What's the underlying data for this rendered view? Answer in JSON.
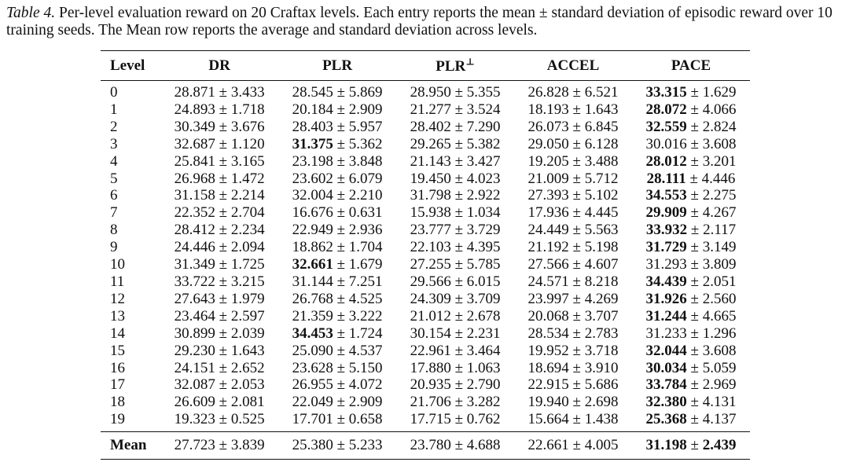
{
  "caption": {
    "label": "Table 4.",
    "text": "Per-level evaluation reward on 20 Craftax levels. Each entry reports the mean ± standard deviation of episodic reward over 10 training seeds. The Mean row reports the average and standard deviation across levels."
  },
  "table": {
    "headers": [
      "Level",
      "DR",
      "PLR",
      "PLR⊥",
      "ACCEL",
      "PACE"
    ],
    "rows": [
      {
        "level": "0",
        "cells": [
          {
            "mean": "28.871",
            "std": "3.433"
          },
          {
            "mean": "28.545",
            "std": "5.869"
          },
          {
            "mean": "28.950",
            "std": "5.355"
          },
          {
            "mean": "26.828",
            "std": "6.521"
          },
          {
            "mean": "33.315",
            "std": "1.629",
            "bold": true
          }
        ]
      },
      {
        "level": "1",
        "cells": [
          {
            "mean": "24.893",
            "std": "1.718"
          },
          {
            "mean": "20.184",
            "std": "2.909"
          },
          {
            "mean": "21.277",
            "std": "3.524"
          },
          {
            "mean": "18.193",
            "std": "1.643"
          },
          {
            "mean": "28.072",
            "std": "4.066",
            "bold": true
          }
        ]
      },
      {
        "level": "2",
        "cells": [
          {
            "mean": "30.349",
            "std": "3.676"
          },
          {
            "mean": "28.403",
            "std": "5.957"
          },
          {
            "mean": "28.402",
            "std": "7.290"
          },
          {
            "mean": "26.073",
            "std": "6.845"
          },
          {
            "mean": "32.559",
            "std": "2.824",
            "bold": true
          }
        ]
      },
      {
        "level": "3",
        "cells": [
          {
            "mean": "32.687",
            "std": "1.120"
          },
          {
            "mean": "31.375",
            "std": "5.362",
            "bold": true
          },
          {
            "mean": "29.265",
            "std": "5.382"
          },
          {
            "mean": "29.050",
            "std": "6.128"
          },
          {
            "mean": "30.016",
            "std": "3.608"
          }
        ]
      },
      {
        "level": "4",
        "cells": [
          {
            "mean": "25.841",
            "std": "3.165"
          },
          {
            "mean": "23.198",
            "std": "3.848"
          },
          {
            "mean": "21.143",
            "std": "3.427"
          },
          {
            "mean": "19.205",
            "std": "3.488"
          },
          {
            "mean": "28.012",
            "std": "3.201",
            "bold": true
          }
        ]
      },
      {
        "level": "5",
        "cells": [
          {
            "mean": "26.968",
            "std": "1.472"
          },
          {
            "mean": "23.602",
            "std": "6.079"
          },
          {
            "mean": "19.450",
            "std": "4.023"
          },
          {
            "mean": "21.009",
            "std": "5.712"
          },
          {
            "mean": "28.111",
            "std": "4.446",
            "bold": true
          }
        ]
      },
      {
        "level": "6",
        "cells": [
          {
            "mean": "31.158",
            "std": "2.214"
          },
          {
            "mean": "32.004",
            "std": "2.210"
          },
          {
            "mean": "31.798",
            "std": "2.922"
          },
          {
            "mean": "27.393",
            "std": "5.102"
          },
          {
            "mean": "34.553",
            "std": "2.275",
            "bold": true
          }
        ]
      },
      {
        "level": "7",
        "cells": [
          {
            "mean": "22.352",
            "std": "2.704"
          },
          {
            "mean": "16.676",
            "std": "0.631"
          },
          {
            "mean": "15.938",
            "std": "1.034"
          },
          {
            "mean": "17.936",
            "std": "4.445"
          },
          {
            "mean": "29.909",
            "std": "4.267",
            "bold": true
          }
        ]
      },
      {
        "level": "8",
        "cells": [
          {
            "mean": "28.412",
            "std": "2.234"
          },
          {
            "mean": "22.949",
            "std": "2.936"
          },
          {
            "mean": "23.777",
            "std": "3.729"
          },
          {
            "mean": "24.449",
            "std": "5.563"
          },
          {
            "mean": "33.932",
            "std": "2.117",
            "bold": true
          }
        ]
      },
      {
        "level": "9",
        "cells": [
          {
            "mean": "24.446",
            "std": "2.094"
          },
          {
            "mean": "18.862",
            "std": "1.704"
          },
          {
            "mean": "22.103",
            "std": "4.395"
          },
          {
            "mean": "21.192",
            "std": "5.198"
          },
          {
            "mean": "31.729",
            "std": "3.149",
            "bold": true
          }
        ]
      },
      {
        "level": "10",
        "cells": [
          {
            "mean": "31.349",
            "std": "1.725"
          },
          {
            "mean": "32.661",
            "std": "1.679",
            "bold": true
          },
          {
            "mean": "27.255",
            "std": "5.785"
          },
          {
            "mean": "27.566",
            "std": "4.607"
          },
          {
            "mean": "31.293",
            "std": "3.809"
          }
        ]
      },
      {
        "level": "11",
        "cells": [
          {
            "mean": "33.722",
            "std": "3.215"
          },
          {
            "mean": "31.144",
            "std": "7.251"
          },
          {
            "mean": "29.566",
            "std": "6.015"
          },
          {
            "mean": "24.571",
            "std": "8.218"
          },
          {
            "mean": "34.439",
            "std": "2.051",
            "bold": true
          }
        ]
      },
      {
        "level": "12",
        "cells": [
          {
            "mean": "27.643",
            "std": "1.979"
          },
          {
            "mean": "26.768",
            "std": "4.525"
          },
          {
            "mean": "24.309",
            "std": "3.709"
          },
          {
            "mean": "23.997",
            "std": "4.269"
          },
          {
            "mean": "31.926",
            "std": "2.560",
            "bold": true
          }
        ]
      },
      {
        "level": "13",
        "cells": [
          {
            "mean": "23.464",
            "std": "2.597"
          },
          {
            "mean": "21.359",
            "std": "3.222"
          },
          {
            "mean": "21.012",
            "std": "2.678"
          },
          {
            "mean": "20.068",
            "std": "3.707"
          },
          {
            "mean": "31.244",
            "std": "4.665",
            "bold": true
          }
        ]
      },
      {
        "level": "14",
        "cells": [
          {
            "mean": "30.899",
            "std": "2.039"
          },
          {
            "mean": "34.453",
            "std": "1.724",
            "bold": true
          },
          {
            "mean": "30.154",
            "std": "2.231"
          },
          {
            "mean": "28.534",
            "std": "2.783"
          },
          {
            "mean": "31.233",
            "std": "1.296"
          }
        ]
      },
      {
        "level": "15",
        "cells": [
          {
            "mean": "29.230",
            "std": "1.643"
          },
          {
            "mean": "25.090",
            "std": "4.537"
          },
          {
            "mean": "22.961",
            "std": "3.464"
          },
          {
            "mean": "19.952",
            "std": "3.718"
          },
          {
            "mean": "32.044",
            "std": "3.608",
            "bold": true
          }
        ]
      },
      {
        "level": "16",
        "cells": [
          {
            "mean": "24.151",
            "std": "2.652"
          },
          {
            "mean": "23.628",
            "std": "5.150"
          },
          {
            "mean": "17.880",
            "std": "1.063"
          },
          {
            "mean": "18.694",
            "std": "3.910"
          },
          {
            "mean": "30.034",
            "std": "5.059",
            "bold": true
          }
        ]
      },
      {
        "level": "17",
        "cells": [
          {
            "mean": "32.087",
            "std": "2.053"
          },
          {
            "mean": "26.955",
            "std": "4.072"
          },
          {
            "mean": "20.935",
            "std": "2.790"
          },
          {
            "mean": "22.915",
            "std": "5.686"
          },
          {
            "mean": "33.784",
            "std": "2.969",
            "bold": true
          }
        ]
      },
      {
        "level": "18",
        "cells": [
          {
            "mean": "26.609",
            "std": "2.081"
          },
          {
            "mean": "22.049",
            "std": "2.909"
          },
          {
            "mean": "21.706",
            "std": "3.282"
          },
          {
            "mean": "19.940",
            "std": "2.698"
          },
          {
            "mean": "32.380",
            "std": "4.131",
            "bold": true
          }
        ]
      },
      {
        "level": "19",
        "cells": [
          {
            "mean": "19.323",
            "std": "0.525"
          },
          {
            "mean": "17.701",
            "std": "0.658"
          },
          {
            "mean": "17.715",
            "std": "0.762"
          },
          {
            "mean": "15.664",
            "std": "1.438"
          },
          {
            "mean": "25.368",
            "std": "4.137",
            "bold": true
          }
        ]
      }
    ],
    "mean_row": {
      "label": "Mean",
      "cells": [
        {
          "mean": "27.723",
          "std": "3.839"
        },
        {
          "mean": "25.380",
          "std": "5.233"
        },
        {
          "mean": "23.780",
          "std": "4.688"
        },
        {
          "mean": "22.661",
          "std": "4.005"
        },
        {
          "mean": "31.198",
          "std": "2.439",
          "bold": true,
          "bold_std": true
        }
      ]
    }
  }
}
